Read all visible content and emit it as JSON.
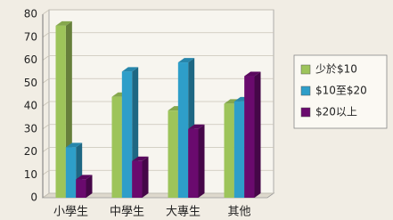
{
  "chart_data": {
    "type": "bar3d",
    "categories": [
      "小學生",
      "中學生",
      "大專生",
      "其他"
    ],
    "series": [
      {
        "name": "少於$10",
        "color": "#9dc45a",
        "values": [
          75,
          44,
          38,
          41
        ]
      },
      {
        "name": "$10至$20",
        "color": "#2e9ec9",
        "values": [
          22,
          55,
          59,
          42
        ]
      },
      {
        "name": "$20以上",
        "color": "#6a0a6e",
        "values": [
          8,
          16,
          30,
          53
        ]
      }
    ],
    "ylim": [
      0,
      80
    ],
    "yticks": [
      0,
      10,
      20,
      30,
      40,
      50,
      60,
      70,
      80
    ],
    "grid": true
  }
}
